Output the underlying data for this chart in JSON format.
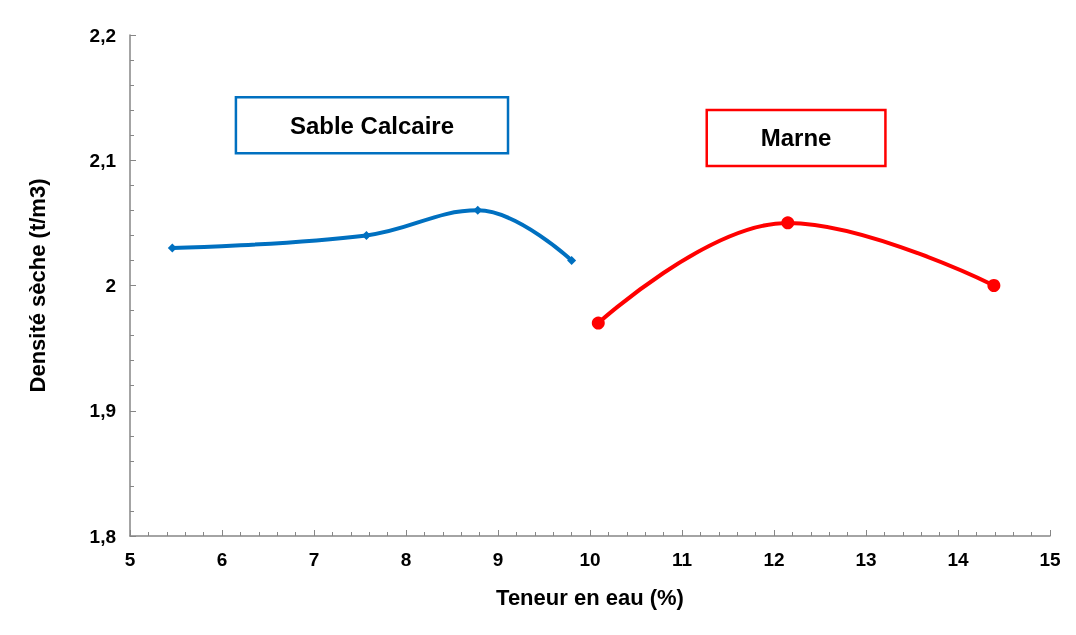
{
  "chart_data": {
    "type": "line",
    "xlabel": "Teneur en eau (%)",
    "ylabel": "Densité sèche (t/m3)",
    "xlim": [
      5,
      15
    ],
    "xticks": [
      5,
      6,
      7,
      8,
      9,
      10,
      11,
      12,
      13,
      14,
      15
    ],
    "ylim": [
      1.8,
      2.2
    ],
    "yticks": [
      {
        "value": 1.8,
        "label": "1,8"
      },
      {
        "value": 1.9,
        "label": "1,9"
      },
      2,
      {
        "value": 2.1,
        "label": "2,1"
      },
      {
        "value": 2.2,
        "label": "2,2"
      }
    ],
    "grid": false,
    "legend": false,
    "series": [
      {
        "name": "Sable Calcaire",
        "color": "#0070c0",
        "marker": "diamond",
        "x": [
          5.46,
          7.57,
          8.78,
          9.8
        ],
        "values": [
          2.03,
          2.04,
          2.06,
          2.02
        ]
      },
      {
        "name": "Marne",
        "color": "#ff0000",
        "marker": "circle",
        "x": [
          10.09,
          12.15,
          14.39
        ],
        "values": [
          1.97,
          2.05,
          2.0
        ]
      }
    ]
  }
}
